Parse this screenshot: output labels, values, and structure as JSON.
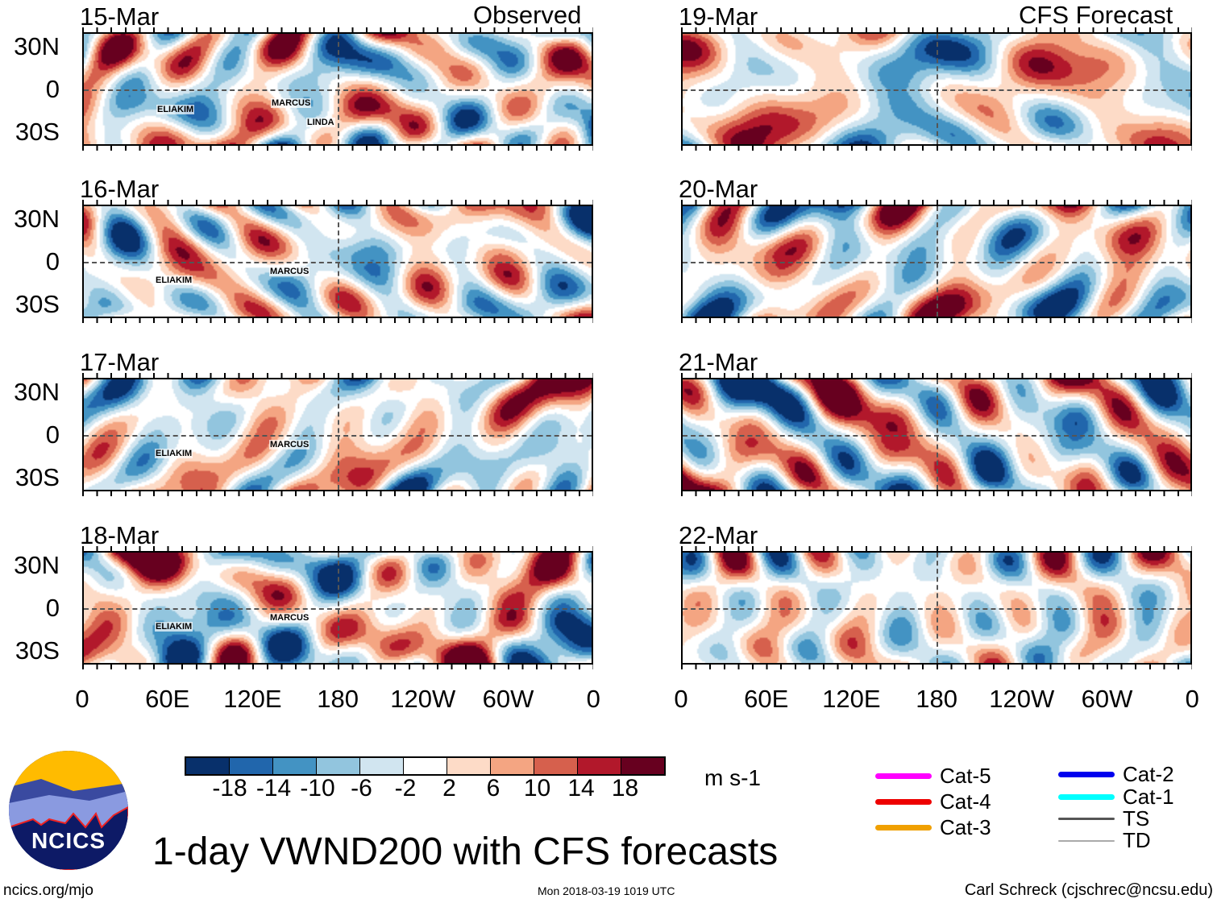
{
  "left_header": "Observed",
  "right_header": "CFS Forecast",
  "panels": [
    {
      "date": "15-Mar",
      "storms": [
        "ELIAKIM",
        "MARCUS",
        "LINDA"
      ]
    },
    {
      "date": "16-Mar",
      "storms": [
        "ELIAKIM",
        "MARCUS"
      ]
    },
    {
      "date": "17-Mar",
      "storms": [
        "ELIAKIM",
        "MARCUS"
      ]
    },
    {
      "date": "18-Mar",
      "storms": [
        "ELIAKIM",
        "MARCUS"
      ]
    },
    {
      "date": "19-Mar",
      "storms": []
    },
    {
      "date": "20-Mar",
      "storms": []
    },
    {
      "date": "21-Mar",
      "storms": []
    },
    {
      "date": "22-Mar",
      "storms": []
    }
  ],
  "lat_labels": [
    "30N",
    "0",
    "30S"
  ],
  "lon_labels": [
    "0",
    "60E",
    "120E",
    "180",
    "120W",
    "60W",
    "0"
  ],
  "colorbar": {
    "colors": [
      "#08306b",
      "#2166ac",
      "#4393c3",
      "#92c5de",
      "#d1e5f0",
      "#ffffff",
      "#fddbc7",
      "#f4a582",
      "#d6604d",
      "#b2182b",
      "#67001f"
    ],
    "labels": [
      "-18",
      "-14",
      "-10",
      "-6",
      "-2",
      "2",
      "6",
      "10",
      "14",
      "18"
    ],
    "units": "m s-1"
  },
  "legend": [
    {
      "label": "Cat-5",
      "color": "#ff00ff"
    },
    {
      "label": "Cat-4",
      "color": "#ee0000"
    },
    {
      "label": "Cat-3",
      "color": "#f0a000"
    },
    {
      "label": "Cat-2",
      "color": "#0000ee"
    },
    {
      "label": "Cat-1",
      "color": "#00ffff"
    },
    {
      "label": "TS",
      "color": "#555555"
    },
    {
      "label": "TD",
      "color": "#aaaaaa"
    }
  ],
  "title": "1-day VWND200 with CFS forecasts",
  "logo_text": "NCICS",
  "site": "ncics.org/mjo",
  "timestamp": "Mon 2018-03-19 1019 UTC",
  "credit": "Carl Schreck (cjschrec@ncsu.edu)"
}
